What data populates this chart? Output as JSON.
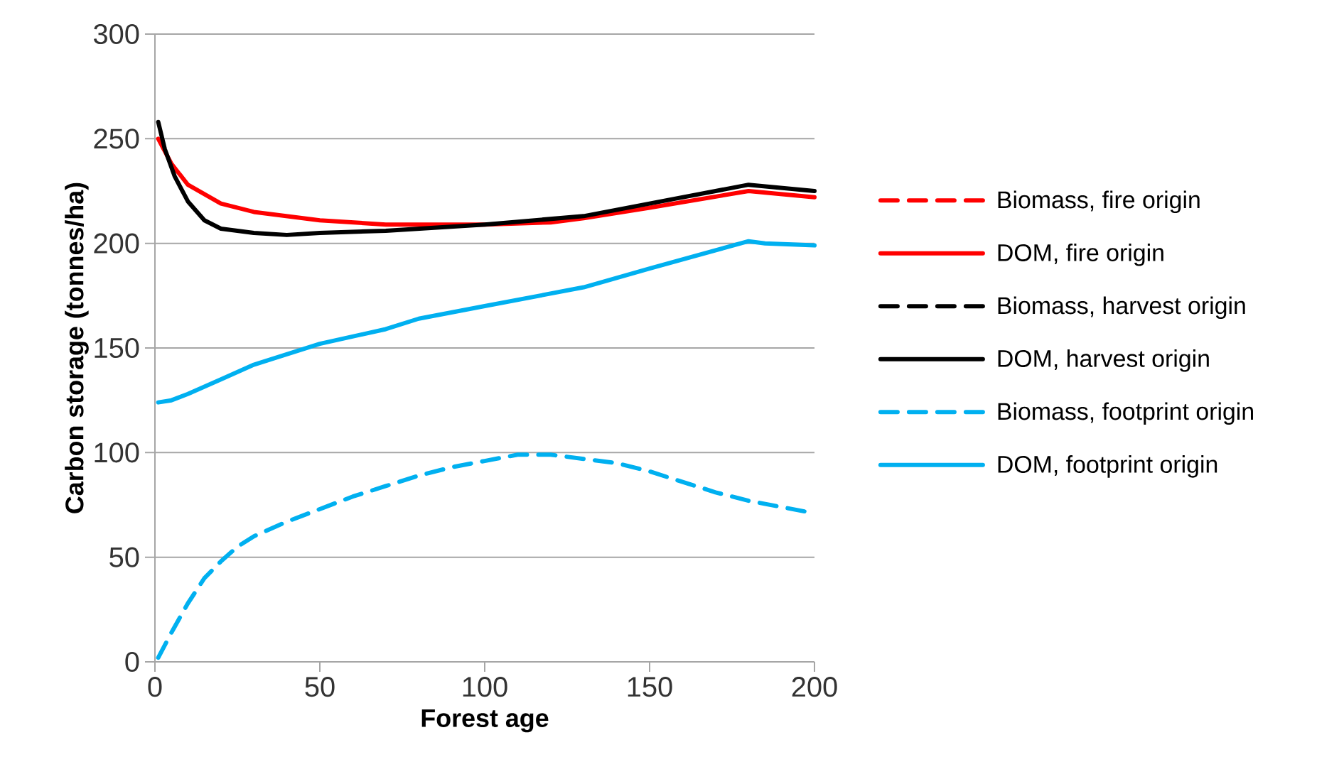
{
  "chart_data": {
    "type": "line",
    "xlabel": "Forest age",
    "ylabel": "Carbon storage (tonnes/ha)",
    "xlim": [
      0,
      200
    ],
    "xticks": [
      0,
      50,
      100,
      150,
      200
    ],
    "ylim": [
      0,
      300
    ],
    "yticks": [
      0,
      50,
      100,
      150,
      200,
      250,
      300
    ],
    "grid": "y",
    "legend": "right",
    "marker": "none",
    "series": [
      {
        "name": "Biomass, fire origin",
        "color": "#ff0000",
        "line_style": "dashed",
        "values": [
          null
        ]
      },
      {
        "name": "DOM, fire origin",
        "color": "#ff0000",
        "line_style": "solid",
        "x": [
          1,
          5,
          10,
          20,
          30,
          50,
          70,
          100,
          120,
          130,
          150,
          180,
          200
        ],
        "values": [
          250,
          238,
          228,
          219,
          215,
          211,
          209,
          209,
          210,
          212,
          217,
          225,
          222
        ]
      },
      {
        "name": "Biomass, harvest origin",
        "color": "#000000",
        "line_style": "dashed",
        "values": [
          null
        ]
      },
      {
        "name": "DOM, harvest origin",
        "color": "#000000",
        "line_style": "solid",
        "x": [
          1,
          3,
          6,
          10,
          15,
          20,
          30,
          40,
          50,
          70,
          100,
          130,
          150,
          180,
          200
        ],
        "values": [
          258,
          245,
          232,
          220,
          211,
          207,
          205,
          204,
          205,
          206,
          209,
          213,
          219,
          228,
          225
        ]
      },
      {
        "name": "Biomass, footprint origin",
        "color": "#00b0f0",
        "line_style": "dashed",
        "x": [
          1,
          5,
          10,
          15,
          20,
          25,
          30,
          40,
          50,
          60,
          70,
          80,
          90,
          100,
          110,
          120,
          130,
          140,
          150,
          160,
          170,
          180,
          200
        ],
        "values": [
          2,
          14,
          28,
          40,
          48,
          55,
          60,
          67,
          73,
          79,
          84,
          89,
          93,
          96,
          99,
          99,
          97,
          95,
          91,
          86,
          81,
          77,
          71
        ]
      },
      {
        "name": "DOM, footprint origin",
        "color": "#00b0f0",
        "line_style": "solid",
        "x": [
          1,
          5,
          10,
          20,
          30,
          40,
          50,
          70,
          80,
          100,
          130,
          150,
          180,
          185,
          200
        ],
        "values": [
          124,
          125,
          128,
          135,
          142,
          147,
          152,
          159,
          164,
          170,
          179,
          188,
          201,
          200,
          199
        ]
      }
    ]
  }
}
